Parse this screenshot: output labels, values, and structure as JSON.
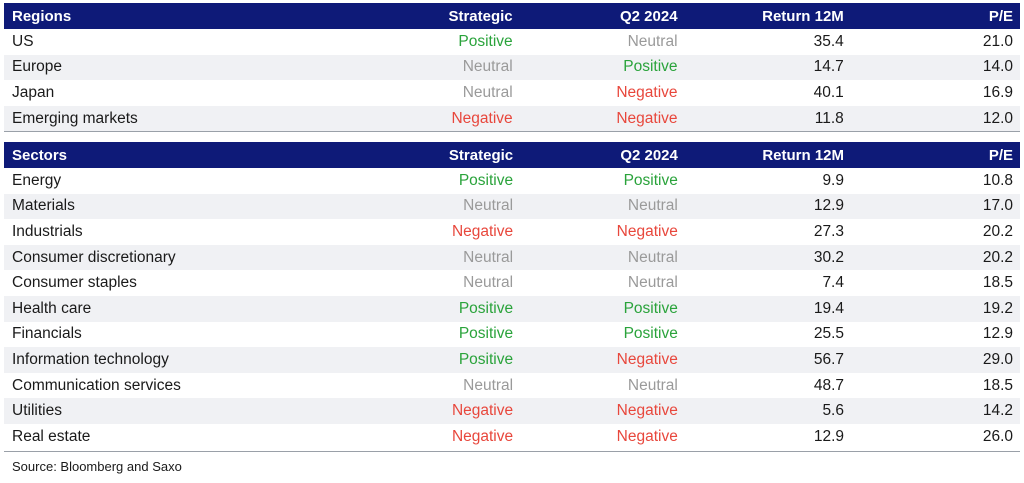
{
  "regions": {
    "headers": [
      "Regions",
      "Strategic",
      "Q2 2024",
      "Return 12M",
      "P/E"
    ],
    "rows": [
      {
        "name": "US",
        "strategic": "Positive",
        "q2": "Neutral",
        "ret": "35.4",
        "pe": "21.0"
      },
      {
        "name": "Europe",
        "strategic": "Neutral",
        "q2": "Positive",
        "ret": "14.7",
        "pe": "14.0"
      },
      {
        "name": "Japan",
        "strategic": "Neutral",
        "q2": "Negative",
        "ret": "40.1",
        "pe": "16.9"
      },
      {
        "name": "Emerging markets",
        "strategic": "Negative",
        "q2": "Negative",
        "ret": "11.8",
        "pe": "12.0"
      }
    ]
  },
  "sectors": {
    "headers": [
      "Sectors",
      "Strategic",
      "Q2 2024",
      "Return 12M",
      "P/E"
    ],
    "rows": [
      {
        "name": "Energy",
        "strategic": "Positive",
        "q2": "Positive",
        "ret": "9.9",
        "pe": "10.8"
      },
      {
        "name": "Materials",
        "strategic": "Neutral",
        "q2": "Neutral",
        "ret": "12.9",
        "pe": "17.0"
      },
      {
        "name": "Industrials",
        "strategic": "Negative",
        "q2": "Negative",
        "ret": "27.3",
        "pe": "20.2"
      },
      {
        "name": "Consumer discretionary",
        "strategic": "Neutral",
        "q2": "Neutral",
        "ret": "30.2",
        "pe": "20.2"
      },
      {
        "name": "Consumer staples",
        "strategic": "Neutral",
        "q2": "Neutral",
        "ret": "7.4",
        "pe": "18.5"
      },
      {
        "name": "Health care",
        "strategic": "Positive",
        "q2": "Positive",
        "ret": "19.4",
        "pe": "19.2"
      },
      {
        "name": "Financials",
        "strategic": "Positive",
        "q2": "Positive",
        "ret": "25.5",
        "pe": "12.9"
      },
      {
        "name": "Information technology",
        "strategic": "Positive",
        "q2": "Negative",
        "ret": "56.7",
        "pe": "29.0"
      },
      {
        "name": "Communication services",
        "strategic": "Neutral",
        "q2": "Neutral",
        "ret": "48.7",
        "pe": "18.5"
      },
      {
        "name": "Utilities",
        "strategic": "Negative",
        "q2": "Negative",
        "ret": "5.6",
        "pe": "14.2"
      },
      {
        "name": "Real estate",
        "strategic": "Negative",
        "q2": "Negative",
        "ret": "12.9",
        "pe": "26.0"
      }
    ]
  },
  "colors": {
    "header_bg": "#0e1a78",
    "positive": "#2aa33b",
    "neutral": "#9a9a9a",
    "negative": "#e8473c",
    "stripe": "#f0f1f4"
  },
  "source": "Source: Bloomberg and Saxo"
}
